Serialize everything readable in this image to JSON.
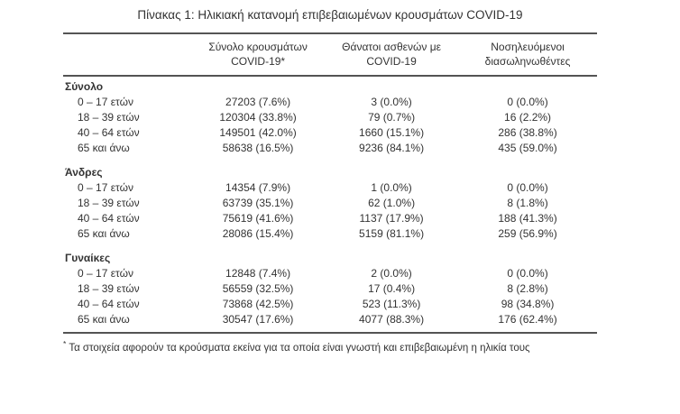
{
  "title": "Πίνακας 1: Ηλικιακή κατανομή επιβεβαιωμένων κρουσμάτων COVID-19",
  "colors": {
    "text": "#333333",
    "rule": "#545454"
  },
  "table": {
    "col_headers": [
      {
        "line1": "Σύνολο κρουσμάτων",
        "line2": "COVID-19*"
      },
      {
        "line1": "Θάνατοι ασθενών με",
        "line2": "COVID-19"
      },
      {
        "line1": "Νοσηλευόμενοι",
        "line2": "διασωληνωθέντες"
      }
    ],
    "sections": [
      {
        "label": "Σύνολο",
        "rows": [
          {
            "label": "0 – 17 ετών",
            "cases": "27203 (7.6%)",
            "deaths": "3 (0.0%)",
            "intubated": "0 (0.0%)"
          },
          {
            "label": "18 – 39 ετών",
            "cases": "120304 (33.8%)",
            "deaths": "79 (0.7%)",
            "intubated": "16 (2.2%)"
          },
          {
            "label": "40 – 64 ετών",
            "cases": "149501 (42.0%)",
            "deaths": "1660 (15.1%)",
            "intubated": "286 (38.8%)"
          },
          {
            "label": "65 και άνω",
            "cases": "58638 (16.5%)",
            "deaths": "9236 (84.1%)",
            "intubated": "435 (59.0%)"
          }
        ]
      },
      {
        "label": "Άνδρες",
        "rows": [
          {
            "label": "0 – 17 ετών",
            "cases": "14354 (7.9%)",
            "deaths": "1 (0.0%)",
            "intubated": "0 (0.0%)"
          },
          {
            "label": "18 – 39 ετών",
            "cases": "63739 (35.1%)",
            "deaths": "62 (1.0%)",
            "intubated": "8 (1.8%)"
          },
          {
            "label": "40 – 64 ετών",
            "cases": "75619 (41.6%)",
            "deaths": "1137 (17.9%)",
            "intubated": "188 (41.3%)"
          },
          {
            "label": "65 και άνω",
            "cases": "28086 (15.4%)",
            "deaths": "5159 (81.1%)",
            "intubated": "259 (56.9%)"
          }
        ]
      },
      {
        "label": "Γυναίκες",
        "rows": [
          {
            "label": "0 – 17 ετών",
            "cases": "12848 (7.4%)",
            "deaths": "2 (0.0%)",
            "intubated": "0 (0.0%)"
          },
          {
            "label": "18 – 39 ετών",
            "cases": "56559 (32.5%)",
            "deaths": "17 (0.4%)",
            "intubated": "8 (2.8%)"
          },
          {
            "label": "40 – 64 ετών",
            "cases": "73868 (42.5%)",
            "deaths": "523 (11.3%)",
            "intubated": "98 (34.8%)"
          },
          {
            "label": "65 και άνω",
            "cases": "30547 (17.6%)",
            "deaths": "4077 (88.3%)",
            "intubated": "176 (62.4%)"
          }
        ]
      }
    ]
  },
  "footnote": {
    "marker": "*",
    "text": "Τα στοιχεία αφορούν τα κρούσματα εκείνα για τα οποία είναι γνωστή και επιβεβαιωμένη η ηλικία τους"
  }
}
